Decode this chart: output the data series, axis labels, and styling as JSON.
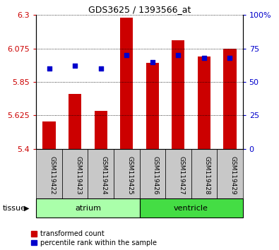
{
  "title": "GDS3625 / 1393566_at",
  "samples": [
    "GSM119422",
    "GSM119423",
    "GSM119424",
    "GSM119425",
    "GSM119426",
    "GSM119427",
    "GSM119428",
    "GSM119429"
  ],
  "red_values": [
    5.585,
    5.77,
    5.655,
    6.28,
    5.98,
    6.13,
    6.02,
    6.075
  ],
  "blue_values": [
    60,
    62,
    60,
    70,
    65,
    70,
    68,
    68
  ],
  "ymin": 5.4,
  "ymax": 6.3,
  "yticks": [
    5.4,
    5.625,
    5.85,
    6.075,
    6.3
  ],
  "ytick_labels": [
    "5.4",
    "5.625",
    "5.85",
    "6.075",
    "6.3"
  ],
  "right_yticks": [
    0,
    25,
    50,
    75,
    100
  ],
  "right_ytick_labels": [
    "0",
    "25",
    "50",
    "75",
    "100%"
  ],
  "bar_color": "#cc0000",
  "dot_color": "#0000cc",
  "bar_bottom": 5.4,
  "groups": [
    {
      "label": "atrium",
      "start": 0,
      "end": 3,
      "color": "#aaffaa"
    },
    {
      "label": "ventricle",
      "start": 4,
      "end": 7,
      "color": "#44dd44"
    }
  ],
  "tissue_label": "tissue",
  "legend_red": "transformed count",
  "legend_blue": "percentile rank within the sample",
  "tick_color_left": "#cc0000",
  "tick_color_right": "#0000cc",
  "xtick_bg": "#c8c8c8",
  "plot_bg": "#ffffff"
}
